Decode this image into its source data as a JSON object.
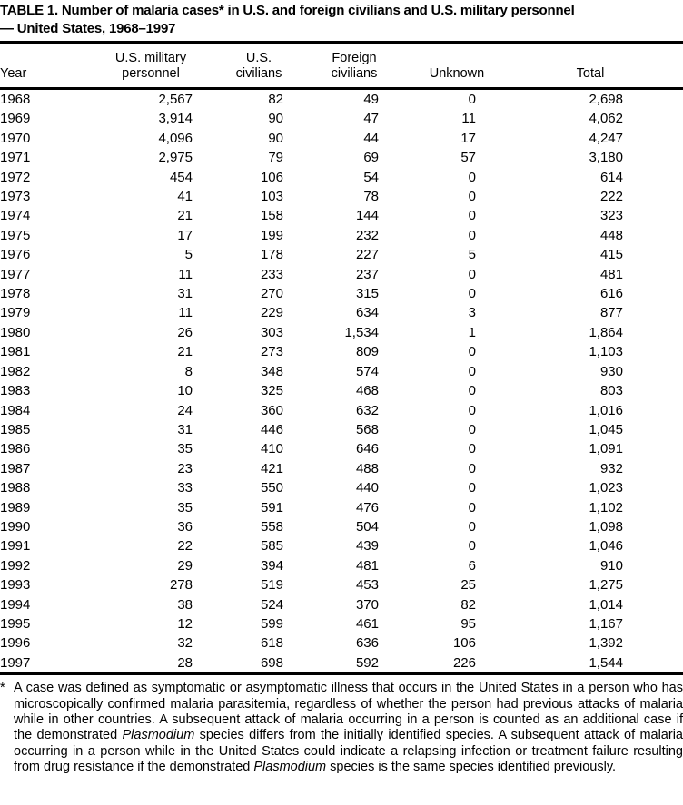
{
  "page": {
    "title": "TABLE 1. Number of malaria cases* in U.S. and foreign civilians and U.S. military personnel\n— United States, 1968–1997"
  },
  "table": {
    "columns": [
      "Year",
      "U.S. military\npersonnel",
      "U.S.\ncivilians",
      "Foreign\ncivilians",
      "Unknown",
      "Total"
    ],
    "column_keys": [
      "year",
      "us-military-personnel",
      "us-civilians",
      "foreign-civilians",
      "unknown",
      "total"
    ],
    "rows": [
      [
        "1968",
        "2,567",
        "82",
        "49",
        "0",
        "2,698"
      ],
      [
        "1969",
        "3,914",
        "90",
        "47",
        "11",
        "4,062"
      ],
      [
        "1970",
        "4,096",
        "90",
        "44",
        "17",
        "4,247"
      ],
      [
        "1971",
        "2,975",
        "79",
        "69",
        "57",
        "3,180"
      ],
      [
        "1972",
        "454",
        "106",
        "54",
        "0",
        "614"
      ],
      [
        "1973",
        "41",
        "103",
        "78",
        "0",
        "222"
      ],
      [
        "1974",
        "21",
        "158",
        "144",
        "0",
        "323"
      ],
      [
        "1975",
        "17",
        "199",
        "232",
        "0",
        "448"
      ],
      [
        "1976",
        "5",
        "178",
        "227",
        "5",
        "415"
      ],
      [
        "1977",
        "11",
        "233",
        "237",
        "0",
        "481"
      ],
      [
        "1978",
        "31",
        "270",
        "315",
        "0",
        "616"
      ],
      [
        "1979",
        "11",
        "229",
        "634",
        "3",
        "877"
      ],
      [
        "1980",
        "26",
        "303",
        "1,534",
        "1",
        "1,864"
      ],
      [
        "1981",
        "21",
        "273",
        "809",
        "0",
        "1,103"
      ],
      [
        "1982",
        "8",
        "348",
        "574",
        "0",
        "930"
      ],
      [
        "1983",
        "10",
        "325",
        "468",
        "0",
        "803"
      ],
      [
        "1984",
        "24",
        "360",
        "632",
        "0",
        "1,016"
      ],
      [
        "1985",
        "31",
        "446",
        "568",
        "0",
        "1,045"
      ],
      [
        "1986",
        "35",
        "410",
        "646",
        "0",
        "1,091"
      ],
      [
        "1987",
        "23",
        "421",
        "488",
        "0",
        "932"
      ],
      [
        "1988",
        "33",
        "550",
        "440",
        "0",
        "1,023"
      ],
      [
        "1989",
        "35",
        "591",
        "476",
        "0",
        "1,102"
      ],
      [
        "1990",
        "36",
        "558",
        "504",
        "0",
        "1,098"
      ],
      [
        "1991",
        "22",
        "585",
        "439",
        "0",
        "1,046"
      ],
      [
        "1992",
        "29",
        "394",
        "481",
        "6",
        "910"
      ],
      [
        "1993",
        "278",
        "519",
        "453",
        "25",
        "1,275"
      ],
      [
        "1994",
        "38",
        "524",
        "370",
        "82",
        "1,014"
      ],
      [
        "1995",
        "12",
        "599",
        "461",
        "95",
        "1,167"
      ],
      [
        "1996",
        "32",
        "618",
        "636",
        "106",
        "1,392"
      ],
      [
        "1997",
        "28",
        "698",
        "592",
        "226",
        "1,544"
      ]
    ]
  },
  "footnote": {
    "marker": "*",
    "segments": [
      {
        "text": "A case was defined as symptomatic or asymptomatic illness that occurs in the United States in a person who has microscopically confirmed malaria parasitemia, regardless of whether the person had previous attacks of malaria while in other countries. A subsequent attack of malaria occurring in a person is counted as an additional case if the demonstrated ",
        "italic": false
      },
      {
        "text": "Plasmodium",
        "italic": true
      },
      {
        "text": " species differs from the initially identified species. A subsequent attack of malaria occurring in a person while in the United States could indicate a relapsing infection or treatment failure resulting from drug resistance if the demonstrated ",
        "italic": false
      },
      {
        "text": "Plasmodium",
        "italic": true
      },
      {
        "text": " species is the same species identified previously.",
        "italic": false
      }
    ]
  }
}
